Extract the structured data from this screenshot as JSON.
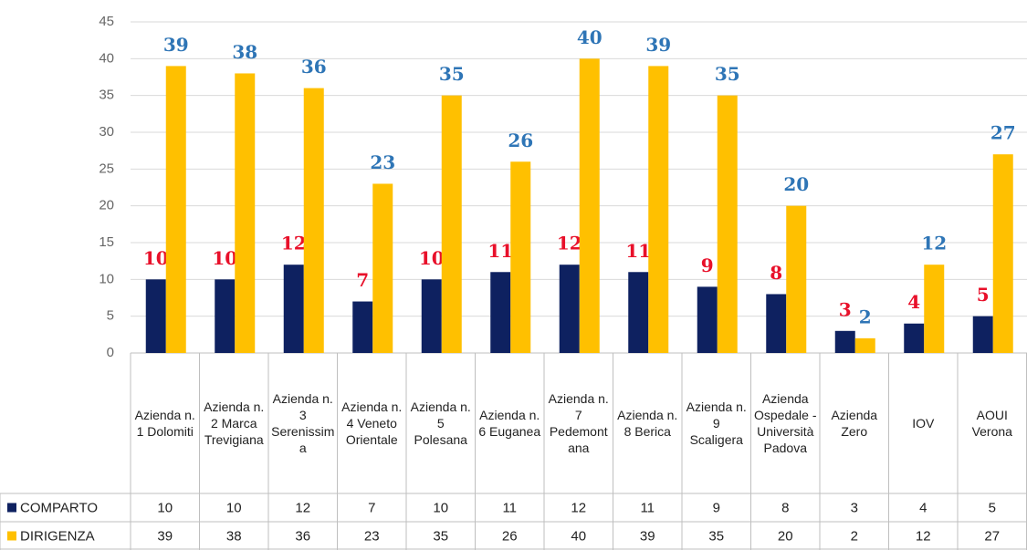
{
  "chart_data": {
    "type": "bar",
    "categories": [
      "Azienda n. 1 Dolomiti",
      "Azienda n. 2 Marca Trevigiana",
      "Azienda n. 3 Serenissima",
      "Azienda n. 4 Veneto Orientale",
      "Azienda n. 5 Polesana",
      "Azienda n. 6 Euganea",
      "Azienda n. 7 Pedemontana",
      "Azienda n. 8 Berica",
      "Azienda n. 9 Scaligera",
      "Azienda Ospedale - Università Padova",
      "Azienda Zero",
      "IOV",
      "AOUI Verona"
    ],
    "series": [
      {
        "name": "COMPARTO",
        "color": "#0e2160",
        "label_color": "#e8102a",
        "values": [
          10,
          10,
          12,
          7,
          10,
          11,
          12,
          11,
          9,
          8,
          3,
          4,
          5
        ]
      },
      {
        "name": "DIRIGENZA",
        "color": "#ffc000",
        "label_color": "#2e75b6",
        "values": [
          39,
          38,
          36,
          23,
          35,
          26,
          40,
          39,
          35,
          20,
          2,
          12,
          27
        ]
      }
    ],
    "ylim": [
      0,
      45
    ],
    "yticks": [
      0,
      5,
      10,
      15,
      20,
      25,
      30,
      35,
      40,
      45
    ],
    "grid": true
  }
}
